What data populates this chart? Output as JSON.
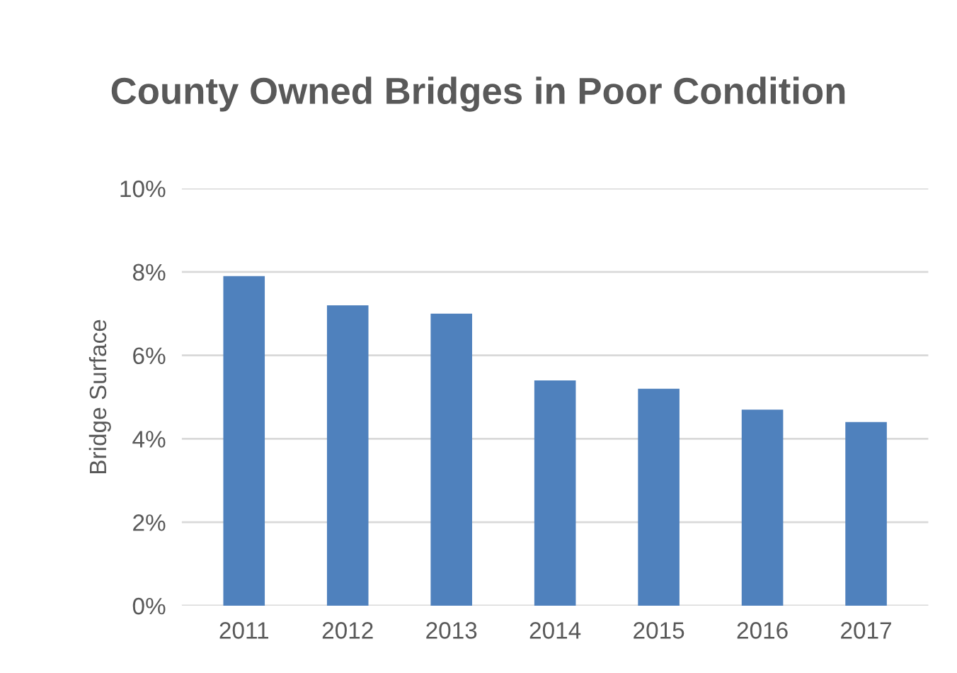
{
  "chart_data": {
    "type": "bar",
    "title": "County Owned Bridges in Poor Condition",
    "ylabel": "Bridge Surface",
    "categories": [
      "2011",
      "2012",
      "2013",
      "2014",
      "2015",
      "2016",
      "2017"
    ],
    "series": [
      {
        "color": "#4f81bd",
        "values": [
          7.9,
          7.2,
          7.0,
          5.4,
          5.2,
          4.7,
          4.4
        ]
      }
    ],
    "ylim": [
      0,
      10
    ],
    "yticks": [
      {
        "value": 0,
        "label": "0%"
      },
      {
        "value": 2,
        "label": "2%"
      },
      {
        "value": 4,
        "label": "4%"
      },
      {
        "value": 6,
        "label": "6%"
      },
      {
        "value": 8,
        "label": "8%"
      },
      {
        "value": 10,
        "label": "10%"
      }
    ],
    "grid": "y"
  }
}
